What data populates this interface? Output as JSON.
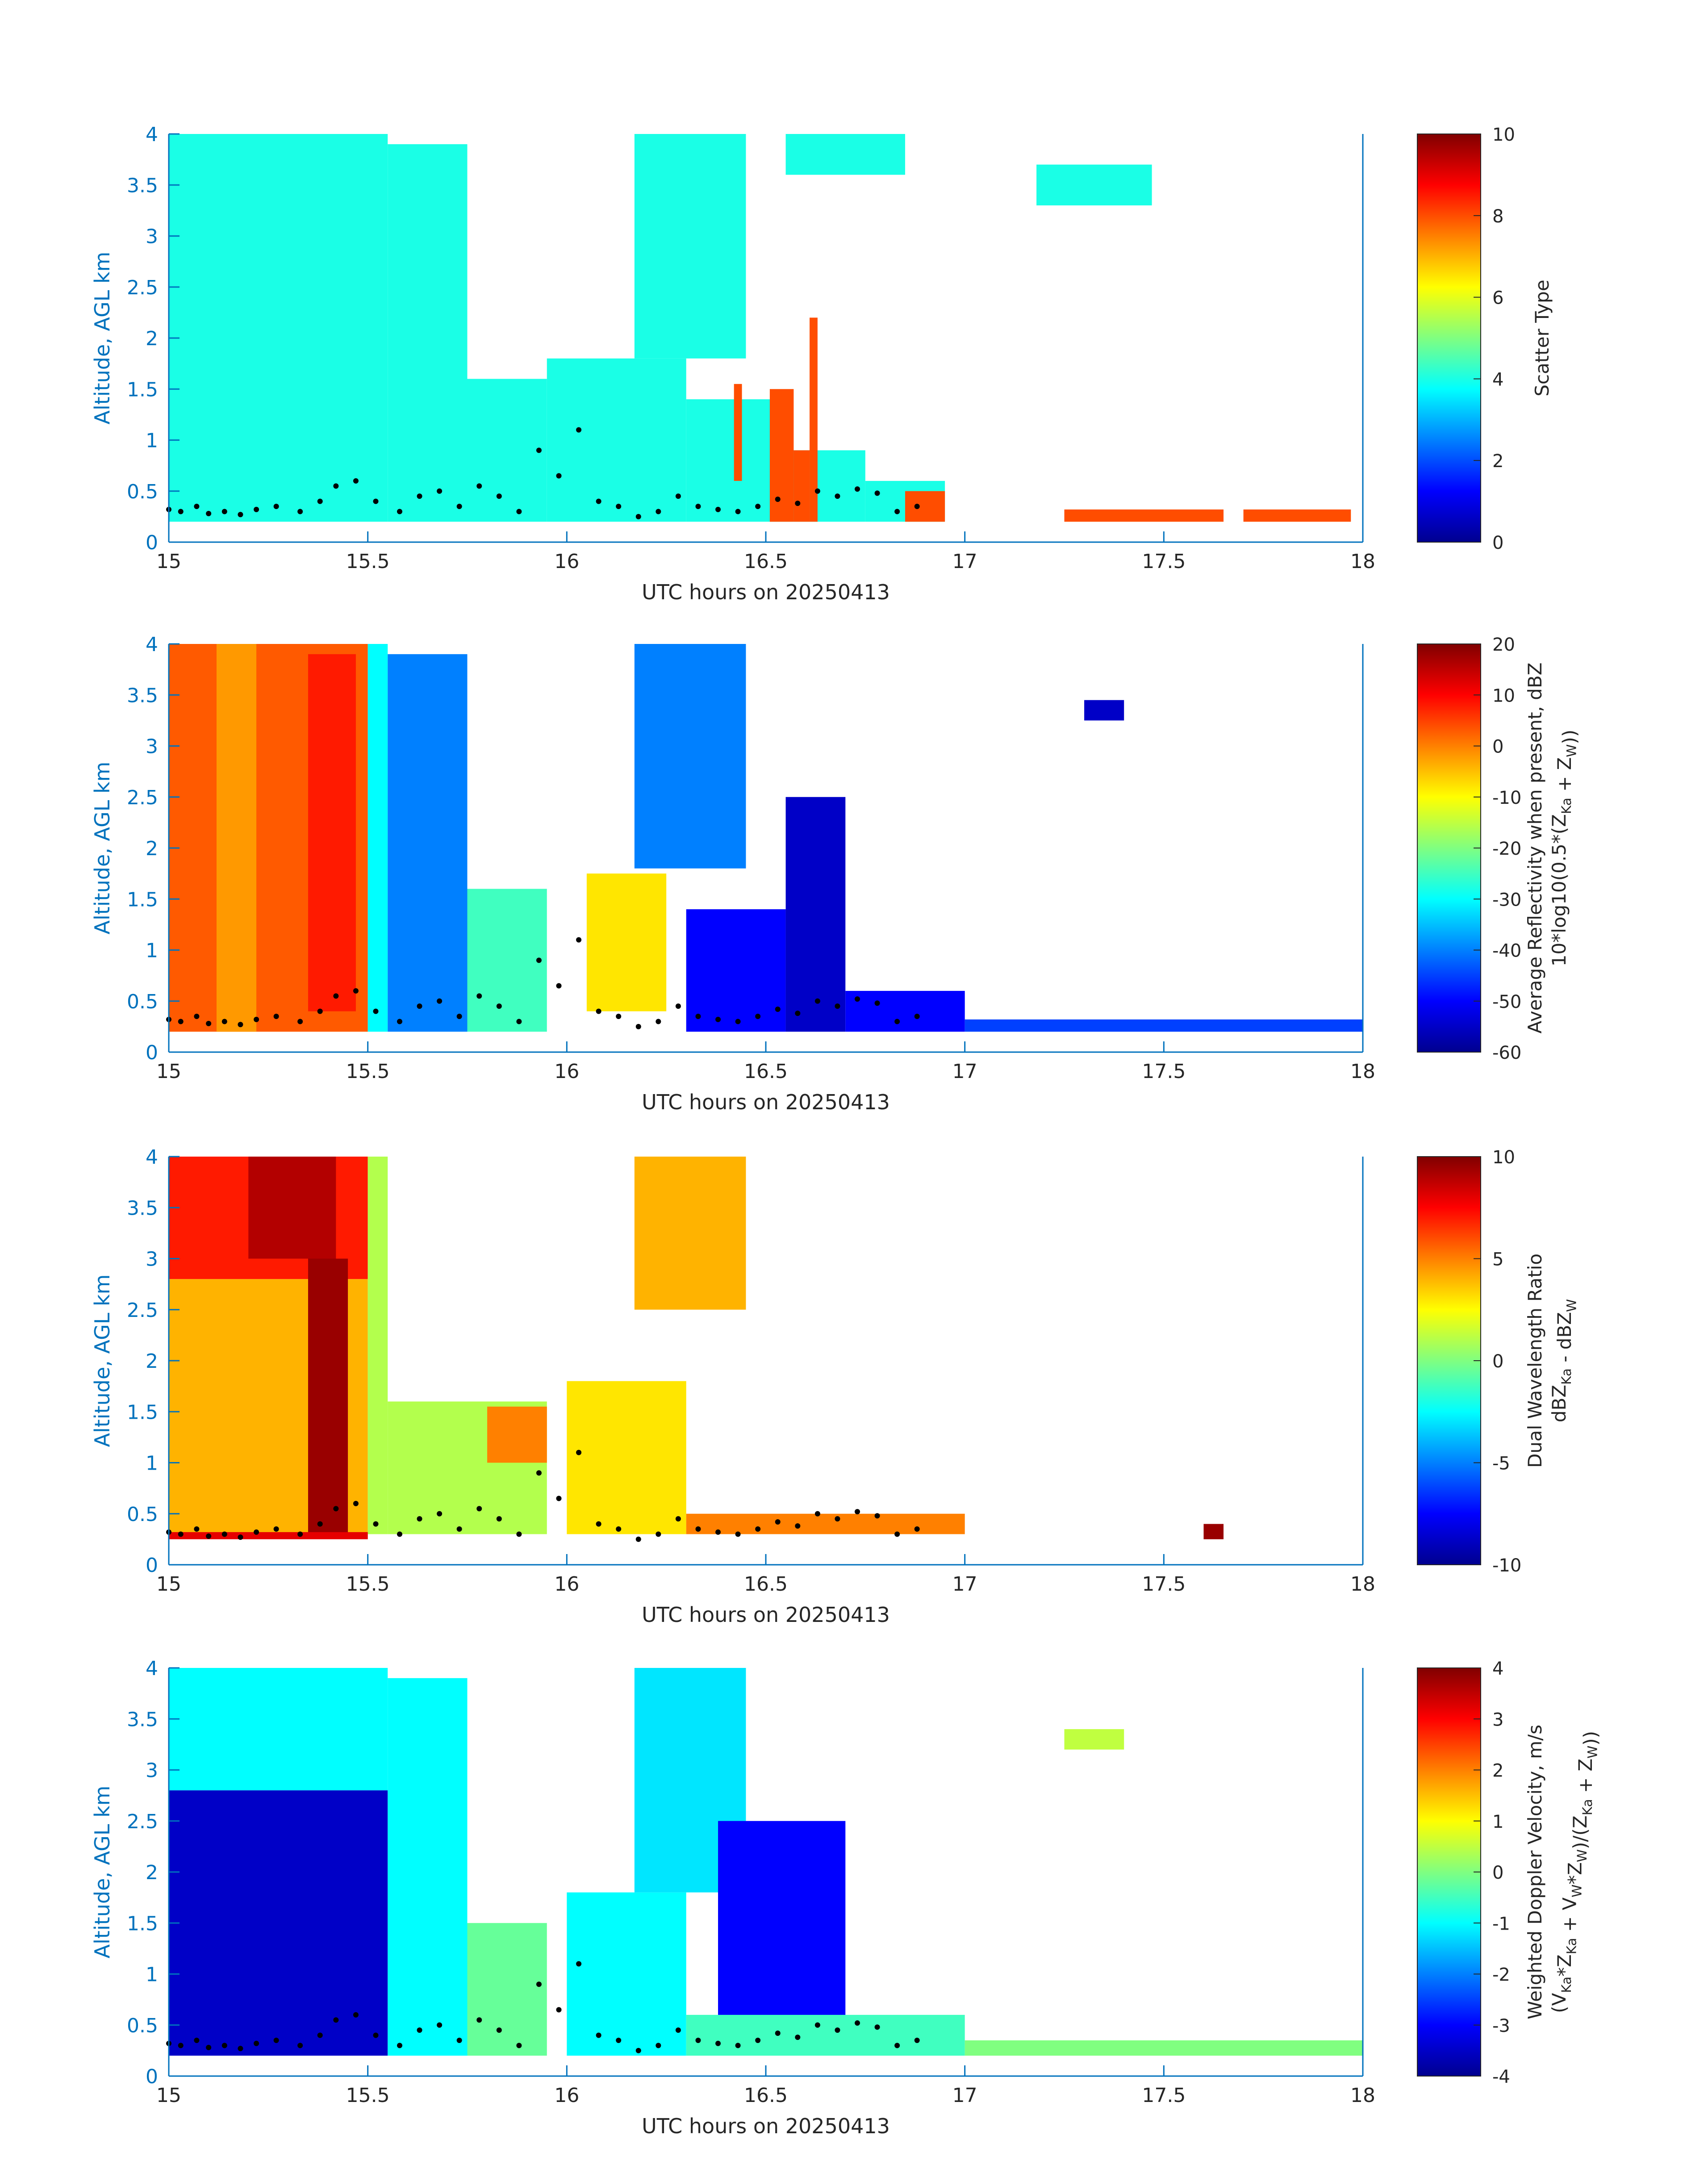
{
  "colors": {
    "axis_label": "#0072BD",
    "tick_text": "#262626",
    "axis_line": "#0072BD",
    "colorbar_border": "#262626",
    "jet": [
      "#00008F",
      "#0000FF",
      "#0080FF",
      "#00FFFF",
      "#80FF80",
      "#FFFF00",
      "#FF8000",
      "#FF0000",
      "#800000"
    ]
  },
  "chart_data": [
    {
      "type": "heatmap",
      "title": "",
      "xlabel": "UTC hours on 20250413",
      "ylabel": "Altitude, AGL km",
      "xlim": [
        15,
        18
      ],
      "ylim": [
        0,
        4
      ],
      "xticks": [
        "15",
        "15.5",
        "16",
        "16.5",
        "17",
        "17.5",
        "18"
      ],
      "yticks": [
        "0",
        "0.5",
        "1",
        "1.5",
        "2",
        "2.5",
        "3",
        "3.5",
        "4"
      ],
      "colorbar": {
        "label_line1": "Scatter Type",
        "label_line2": "",
        "clim": [
          0,
          10
        ],
        "ticks": [
          "0",
          "2",
          "4",
          "6",
          "8",
          "10"
        ]
      },
      "colormap": "jet",
      "regions": [
        {
          "x": [
            15.0,
            15.55
          ],
          "y": [
            0.2,
            4.0
          ],
          "value": 4
        },
        {
          "x": [
            15.55,
            15.75
          ],
          "y": [
            0.2,
            3.9
          ],
          "value": 4
        },
        {
          "x": [
            15.75,
            15.95
          ],
          "y": [
            0.2,
            1.6
          ],
          "value": 4
        },
        {
          "x": [
            15.95,
            16.3
          ],
          "y": [
            0.2,
            1.8
          ],
          "value": 4
        },
        {
          "x": [
            16.17,
            16.45
          ],
          "y": [
            1.8,
            4.0
          ],
          "value": 4
        },
        {
          "x": [
            16.3,
            16.55
          ],
          "y": [
            0.2,
            1.4
          ],
          "value": 4
        },
        {
          "x": [
            16.55,
            16.75
          ],
          "y": [
            0.2,
            0.9
          ],
          "value": 4
        },
        {
          "x": [
            16.75,
            16.95
          ],
          "y": [
            0.2,
            0.6
          ],
          "value": 4
        },
        {
          "x": [
            16.55,
            16.85
          ],
          "y": [
            3.6,
            4.0
          ],
          "value": 4
        },
        {
          "x": [
            17.18,
            17.47
          ],
          "y": [
            3.3,
            3.7
          ],
          "value": 4
        },
        {
          "x": [
            16.51,
            16.57
          ],
          "y": [
            0.2,
            1.5
          ],
          "value": 8
        },
        {
          "x": [
            16.57,
            16.61
          ],
          "y": [
            0.2,
            0.9
          ],
          "value": 8
        },
        {
          "x": [
            16.61,
            16.63
          ],
          "y": [
            0.2,
            2.2
          ],
          "value": 8
        },
        {
          "x": [
            16.42,
            16.44
          ],
          "y": [
            0.6,
            1.55
          ],
          "value": 8
        },
        {
          "x": [
            16.85,
            16.95
          ],
          "y": [
            0.2,
            0.5
          ],
          "value": 8
        },
        {
          "x": [
            17.25,
            17.65
          ],
          "y": [
            0.2,
            0.32
          ],
          "value": 8
        },
        {
          "x": [
            17.7,
            17.97
          ],
          "y": [
            0.2,
            0.32
          ],
          "value": 8
        }
      ]
    },
    {
      "type": "heatmap",
      "title": "",
      "xlabel": "UTC hours on 20250413",
      "ylabel": "Altitude, AGL km",
      "xlim": [
        15,
        18
      ],
      "ylim": [
        0,
        4
      ],
      "xticks": [
        "15",
        "15.5",
        "16",
        "16.5",
        "17",
        "17.5",
        "18"
      ],
      "yticks": [
        "0",
        "0.5",
        "1",
        "1.5",
        "2",
        "2.5",
        "3",
        "3.5",
        "4"
      ],
      "colorbar": {
        "label_line1": "Average Reflectivity when present, dBZ",
        "label_line2": "10*log10(0.5*(Z_Ka + Z_W))",
        "clim": [
          -60,
          20
        ],
        "ticks": [
          "-60",
          "-50",
          "-40",
          "-30",
          "-20",
          "-10",
          "0",
          "10",
          "20"
        ]
      },
      "colormap": "jet",
      "regions": [
        {
          "x": [
            15.0,
            15.5
          ],
          "y": [
            0.2,
            4.0
          ],
          "value": 3
        },
        {
          "x": [
            15.12,
            15.22
          ],
          "y": [
            0.2,
            4.0
          ],
          "value": -2
        },
        {
          "x": [
            15.35,
            15.47
          ],
          "y": [
            0.4,
            3.9
          ],
          "value": 8
        },
        {
          "x": [
            15.5,
            15.55
          ],
          "y": [
            0.2,
            4.0
          ],
          "value": -30
        },
        {
          "x": [
            15.55,
            15.75
          ],
          "y": [
            0.2,
            3.9
          ],
          "value": -40
        },
        {
          "x": [
            15.75,
            15.95
          ],
          "y": [
            0.2,
            1.6
          ],
          "value": -25
        },
        {
          "x": [
            16.05,
            16.25
          ],
          "y": [
            0.4,
            1.75
          ],
          "value": -8
        },
        {
          "x": [
            16.17,
            16.45
          ],
          "y": [
            1.8,
            4.0
          ],
          "value": -40
        },
        {
          "x": [
            16.3,
            16.55
          ],
          "y": [
            0.2,
            1.4
          ],
          "value": -50
        },
        {
          "x": [
            16.55,
            16.7
          ],
          "y": [
            0.2,
            2.5
          ],
          "value": -55
        },
        {
          "x": [
            16.7,
            17.0
          ],
          "y": [
            0.2,
            0.6
          ],
          "value": -50
        },
        {
          "x": [
            17.0,
            18.0
          ],
          "y": [
            0.2,
            0.32
          ],
          "value": -45
        },
        {
          "x": [
            17.3,
            17.4
          ],
          "y": [
            3.25,
            3.45
          ],
          "value": -55
        }
      ]
    },
    {
      "type": "heatmap",
      "title": "",
      "xlabel": "UTC hours on 20250413",
      "ylabel": "Altitude, AGL km",
      "xlim": [
        15,
        18
      ],
      "ylim": [
        0,
        4
      ],
      "xticks": [
        "15",
        "15.5",
        "16",
        "16.5",
        "17",
        "17.5",
        "18"
      ],
      "yticks": [
        "0",
        "0.5",
        "1",
        "1.5",
        "2",
        "2.5",
        "3",
        "3.5",
        "4"
      ],
      "colorbar": {
        "label_line1": "Dual Wavelength Ratio",
        "label_line2": "dBZ_Ka - dBZ_W",
        "clim": [
          -10,
          10
        ],
        "ticks": [
          "-10",
          "-5",
          "0",
          "5",
          "10"
        ]
      },
      "colormap": "jet",
      "regions": [
        {
          "x": [
            15.0,
            15.5
          ],
          "y": [
            0.3,
            2.8
          ],
          "value": 4
        },
        {
          "x": [
            15.0,
            15.5
          ],
          "y": [
            2.8,
            4.0
          ],
          "value": 7
        },
        {
          "x": [
            15.2,
            15.42
          ],
          "y": [
            3.0,
            4.0
          ],
          "value": 9
        },
        {
          "x": [
            15.35,
            15.45
          ],
          "y": [
            0.3,
            3.0
          ],
          "value": 9.5
        },
        {
          "x": [
            15.5,
            15.55
          ],
          "y": [
            0.3,
            4.0
          ],
          "value": 1
        },
        {
          "x": [
            15.55,
            15.95
          ],
          "y": [
            0.3,
            1.6
          ],
          "value": 1
        },
        {
          "x": [
            15.8,
            15.95
          ],
          "y": [
            1.0,
            1.55
          ],
          "value": 5
        },
        {
          "x": [
            16.0,
            16.3
          ],
          "y": [
            0.3,
            1.8
          ],
          "value": 3
        },
        {
          "x": [
            16.17,
            16.45
          ],
          "y": [
            2.5,
            4.0
          ],
          "value": 4
        },
        {
          "x": [
            16.3,
            17.0
          ],
          "y": [
            0.3,
            0.5
          ],
          "value": 5
        },
        {
          "x": [
            15.0,
            15.5
          ],
          "y": [
            0.25,
            0.32
          ],
          "value": 8
        },
        {
          "x": [
            17.6,
            17.65
          ],
          "y": [
            0.25,
            0.4
          ],
          "value": 9.5
        }
      ]
    },
    {
      "type": "heatmap",
      "title": "",
      "xlabel": "UTC hours on 20250413",
      "ylabel": "Altitude, AGL km",
      "xlim": [
        15,
        18
      ],
      "ylim": [
        0,
        4
      ],
      "xticks": [
        "15",
        "15.5",
        "16",
        "16.5",
        "17",
        "17.5",
        "18"
      ],
      "yticks": [
        "0",
        "0.5",
        "1",
        "1.5",
        "2",
        "2.5",
        "3",
        "3.5",
        "4"
      ],
      "colorbar": {
        "label_line1": "Weighted Doppler Velocity, m/s",
        "label_line2": "(V_Ka*Z_Ka + V_W*Z_W)/(Z_Ka + Z_W))",
        "clim": [
          -4,
          4
        ],
        "ticks": [
          "-4",
          "-3",
          "-2",
          "-1",
          "0",
          "1",
          "2",
          "3",
          "4"
        ]
      },
      "colormap": "jet",
      "regions": [
        {
          "x": [
            15.0,
            15.55
          ],
          "y": [
            2.8,
            4.0
          ],
          "value": -1
        },
        {
          "x": [
            15.0,
            15.55
          ],
          "y": [
            0.2,
            2.8
          ],
          "value": -3.5
        },
        {
          "x": [
            15.55,
            15.75
          ],
          "y": [
            0.2,
            3.9
          ],
          "value": -1
        },
        {
          "x": [
            15.75,
            15.95
          ],
          "y": [
            0.2,
            1.5
          ],
          "value": -0.2
        },
        {
          "x": [
            16.0,
            16.3
          ],
          "y": [
            0.2,
            1.8
          ],
          "value": -1
        },
        {
          "x": [
            16.17,
            16.45
          ],
          "y": [
            1.8,
            4.0
          ],
          "value": -1.2
        },
        {
          "x": [
            16.38,
            16.7
          ],
          "y": [
            0.4,
            2.5
          ],
          "value": -3
        },
        {
          "x": [
            16.3,
            17.0
          ],
          "y": [
            0.2,
            0.6
          ],
          "value": -0.5
        },
        {
          "x": [
            17.0,
            18.0
          ],
          "y": [
            0.2,
            0.35
          ],
          "value": 0
        },
        {
          "x": [
            17.25,
            17.4
          ],
          "y": [
            3.2,
            3.4
          ],
          "value": 0.5
        }
      ]
    }
  ],
  "overlay_points": {
    "x": [
      15.0,
      15.03,
      15.07,
      15.1,
      15.14,
      15.18,
      15.22,
      15.27,
      15.33,
      15.38,
      15.42,
      15.47,
      15.52,
      15.58,
      15.63,
      15.68,
      15.73,
      15.78,
      15.83,
      15.88,
      15.93,
      15.98,
      16.03,
      16.08,
      16.13,
      16.18,
      16.23,
      16.28,
      16.33,
      16.38,
      16.43,
      16.48,
      16.53,
      16.58,
      16.63,
      16.68,
      16.73,
      16.78,
      16.83,
      16.88
    ],
    "y": [
      0.32,
      0.3,
      0.35,
      0.28,
      0.3,
      0.27,
      0.32,
      0.35,
      0.3,
      0.4,
      0.55,
      0.6,
      0.4,
      0.3,
      0.45,
      0.5,
      0.35,
      0.55,
      0.45,
      0.3,
      0.9,
      0.65,
      1.1,
      0.4,
      0.35,
      0.25,
      0.3,
      0.45,
      0.35,
      0.32,
      0.3,
      0.35,
      0.42,
      0.38,
      0.5,
      0.45,
      0.52,
      0.48,
      0.3,
      0.35
    ]
  }
}
